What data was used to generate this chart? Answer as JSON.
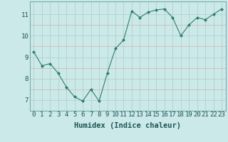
{
  "x": [
    0,
    1,
    2,
    3,
    4,
    5,
    6,
    7,
    8,
    9,
    10,
    11,
    12,
    13,
    14,
    15,
    16,
    17,
    18,
    19,
    20,
    21,
    22,
    23
  ],
  "y": [
    9.25,
    8.6,
    8.7,
    8.25,
    7.6,
    7.15,
    6.95,
    7.5,
    6.95,
    8.25,
    9.4,
    9.8,
    11.15,
    10.85,
    11.1,
    11.2,
    11.25,
    10.85,
    10.0,
    10.5,
    10.85,
    10.75,
    11.0,
    11.25
  ],
  "xlabel": "Humidex (Indice chaleur)",
  "yticks": [
    7,
    8,
    9,
    10,
    11
  ],
  "xticks": [
    0,
    1,
    2,
    3,
    4,
    5,
    6,
    7,
    8,
    9,
    10,
    11,
    12,
    13,
    14,
    15,
    16,
    17,
    18,
    19,
    20,
    21,
    22,
    23
  ],
  "ylim": [
    6.5,
    11.6
  ],
  "xlim": [
    -0.5,
    23.5
  ],
  "bg_color": "#cce9e9",
  "line_color": "#2e7d6e",
  "marker_color": "#2e7d6e",
  "grid_color_major": "#b0d0d0",
  "grid_color_minor": "#c8e2e2",
  "spine_color": "#7aabab",
  "xlabel_fontsize": 7.5,
  "tick_fontsize": 6.5
}
